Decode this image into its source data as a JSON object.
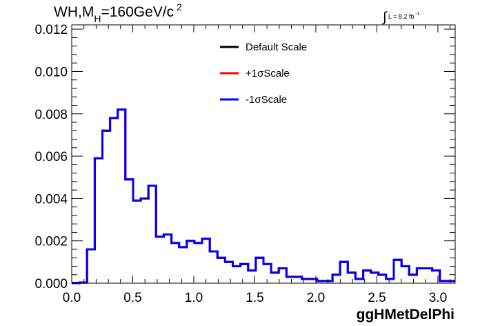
{
  "chart_data": {
    "type": "histogram",
    "title_parts": {
      "main": "WH,M",
      "sub": "H",
      "rest": "=160GeV/c",
      "sup": "2"
    },
    "lumi": {
      "integral": "∫",
      "text": "L = 8.2 fb",
      "sup": "-1"
    },
    "xlabel": "ggHMetDelPhi",
    "ylabel": "",
    "xlim": [
      0,
      3.1416
    ],
    "ylim": [
      0,
      0.0122
    ],
    "x_ticks": [
      "0.0",
      "0.5",
      "1.0",
      "1.5",
      "2.0",
      "2.5",
      "3.0"
    ],
    "x_tick_values": [
      0,
      0.5,
      1.0,
      1.5,
      2.0,
      2.5,
      3.0
    ],
    "y_ticks": [
      "0.000",
      "0.002",
      "0.004",
      "0.006",
      "0.008",
      "0.010",
      "0.012"
    ],
    "y_tick_values": [
      0,
      0.002,
      0.004,
      0.006,
      0.008,
      0.01,
      0.012
    ],
    "grid": false,
    "legend_position": "top-center",
    "bin_edges": [
      0,
      0.0628,
      0.1257,
      0.1885,
      0.2513,
      0.3142,
      0.377,
      0.4398,
      0.5027,
      0.5655,
      0.6283,
      0.6912,
      0.754,
      0.8168,
      0.8796,
      0.9425,
      1.0053,
      1.0681,
      1.131,
      1.1938,
      1.2566,
      1.3195,
      1.3823,
      1.4451,
      1.508,
      1.5708,
      1.6336,
      1.6965,
      1.7593,
      1.8221,
      1.885,
      1.9478,
      2.0106,
      2.0735,
      2.1363,
      2.1991,
      2.2619,
      2.3248,
      2.3876,
      2.4504,
      2.5133,
      2.5761,
      2.6389,
      2.7018,
      2.7646,
      2.8274,
      2.8903,
      2.9531,
      3.0159,
      3.0788,
      3.1416
    ],
    "series": [
      {
        "name": "Default Scale",
        "color": "#000000",
        "values": [
          1e-05,
          3e-05,
          0.0016,
          0.0059,
          0.0072,
          0.0078,
          0.0082,
          0.0049,
          0.0039,
          0.004,
          0.0046,
          0.0022,
          0.0023,
          0.0019,
          0.0017,
          0.002,
          0.0019,
          0.0021,
          0.0015,
          0.0012,
          0.001,
          0.0008,
          0.0009,
          0.0006,
          0.0012,
          0.0009,
          0.0005,
          0.0007,
          0.0003,
          0.0003,
          0.0002,
          0.0002,
          0.0001,
          0.0001,
          0.0004,
          0.001,
          0.0005,
          0.0002,
          0.0006,
          0.0005,
          0.0004,
          0.0002,
          0.0011,
          0.0008,
          0.0004,
          0.0007,
          0.0007,
          0.0006,
          0.0001,
          0.0001
        ]
      },
      {
        "name": "+1σScale",
        "color": "#ff0000",
        "values": [
          1e-05,
          3e-05,
          0.0016,
          0.0059,
          0.0072,
          0.0078,
          0.0082,
          0.0049,
          0.0039,
          0.004,
          0.0046,
          0.0022,
          0.0023,
          0.0019,
          0.0017,
          0.002,
          0.0019,
          0.0021,
          0.0015,
          0.0012,
          0.001,
          0.0008,
          0.0009,
          0.0006,
          0.0012,
          0.0009,
          0.0005,
          0.0007,
          0.0003,
          0.0003,
          0.0002,
          0.0002,
          0.0001,
          0.0001,
          0.0004,
          0.001,
          0.0005,
          0.0002,
          0.0006,
          0.0005,
          0.0004,
          0.0002,
          0.0011,
          0.0008,
          0.0004,
          0.0007,
          0.0007,
          0.0006,
          0.0001,
          0.0001
        ]
      },
      {
        "name": "-1σScale",
        "color": "#0000ff",
        "values": [
          1e-05,
          3e-05,
          0.0016,
          0.0059,
          0.0072,
          0.0078,
          0.0082,
          0.0049,
          0.0039,
          0.004,
          0.0046,
          0.0022,
          0.0023,
          0.0019,
          0.0017,
          0.002,
          0.0019,
          0.0021,
          0.0015,
          0.0012,
          0.001,
          0.0008,
          0.0009,
          0.0006,
          0.0012,
          0.0009,
          0.0005,
          0.0007,
          0.0003,
          0.0003,
          0.0002,
          0.0002,
          0.0001,
          0.0001,
          0.0004,
          0.001,
          0.0005,
          0.0002,
          0.0006,
          0.0005,
          0.0004,
          0.0002,
          0.0011,
          0.0008,
          0.0004,
          0.0007,
          0.0007,
          0.0006,
          0.0001,
          0.0001
        ]
      }
    ]
  }
}
